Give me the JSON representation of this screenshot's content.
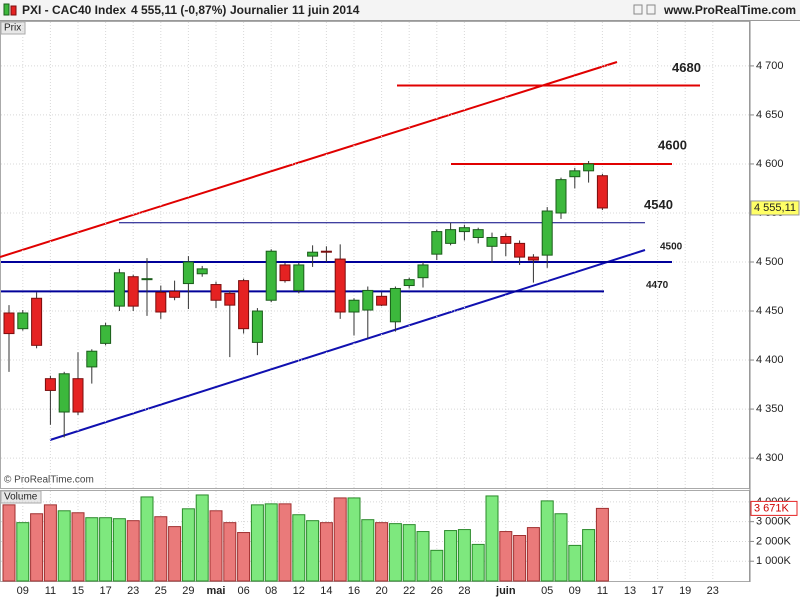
{
  "header": {
    "symbol": "PXI - CAC40 Index",
    "quote": "4 555,11 (-0,87%)",
    "period": "Journalier",
    "date": "11 juin 2014",
    "site": "www.ProRealTime.com"
  },
  "copyright": "© ProRealTime.com",
  "chart_data": [
    {
      "type": "candlestick",
      "axis_label": "Prix",
      "categories": [
        null,
        "09",
        null,
        "11",
        null,
        "15",
        null,
        "17",
        null,
        "23",
        null,
        "25",
        null,
        "29",
        null,
        "mai",
        null,
        "06",
        null,
        "08",
        null,
        "12",
        null,
        "14",
        null,
        "16",
        null,
        "20",
        null,
        "22",
        null,
        "26",
        null,
        "28",
        null,
        null,
        "juin",
        null,
        null,
        "05",
        null,
        "09",
        null,
        "11",
        null,
        "13",
        null,
        "17",
        null,
        "19",
        null,
        "23",
        null
      ],
      "open": [
        4448,
        4432,
        4463,
        4381,
        4347,
        4381,
        4393,
        4417,
        4455,
        4485,
        4482,
        4469,
        4470,
        4478,
        4488,
        4477,
        4468,
        4481,
        4418,
        4461,
        4497,
        4471,
        4506,
        4511,
        4503,
        4449,
        4451,
        4465,
        4439,
        4476,
        4484,
        4508,
        4519,
        4531,
        4525,
        4516,
        4526,
        4519,
        4505,
        4507,
        4550,
        4587,
        4593,
        4588,
        null,
        null,
        null,
        null,
        null,
        null,
        null,
        null,
        null
      ],
      "high": [
        4456,
        4451,
        4469,
        4384,
        4388,
        4408,
        4411,
        4438,
        4493,
        4487,
        4504,
        4476,
        4481,
        4506,
        4496,
        4480,
        4471,
        4483,
        4453,
        4513,
        4499,
        4499,
        4517,
        4516,
        4518,
        4463,
        4475,
        4469,
        4475,
        4484,
        4500,
        4533,
        4540,
        4538,
        4535,
        4530,
        4529,
        4522,
        4508,
        4556,
        4586,
        4596,
        4603,
        4590,
        null,
        null,
        null,
        null,
        null,
        null,
        null,
        null,
        null
      ],
      "low": [
        4388,
        4430,
        4412,
        4334,
        4321,
        4344,
        4376,
        4415,
        4450,
        4450,
        4445,
        4442,
        4461,
        4452,
        4485,
        4453,
        4403,
        4427,
        4405,
        4459,
        4479,
        4468,
        4495,
        4500,
        4442,
        4425,
        4422,
        4455,
        4429,
        4473,
        4474,
        4502,
        4517,
        4522,
        4519,
        4499,
        4506,
        4497,
        4479,
        4494,
        4544,
        4575,
        4581,
        4553,
        null,
        null,
        null,
        null,
        null,
        null,
        null,
        null,
        null
      ],
      "close": [
        4427,
        4448,
        4415,
        4369,
        4386,
        4347,
        4409,
        4435,
        4489,
        4455,
        4483,
        4449,
        4464,
        4500,
        4493,
        4461,
        4456,
        4432,
        4450,
        4511,
        4481,
        4497,
        4510,
        4510,
        4449,
        4461,
        4471,
        4456,
        4473,
        4482,
        4497,
        4531,
        4533,
        4535,
        4533,
        4525,
        4519,
        4505,
        4502,
        4552,
        4584,
        4593,
        4600,
        4555.11,
        null,
        null,
        null,
        null,
        null,
        null,
        null,
        null,
        null
      ],
      "up_color": "#3cb83c",
      "down_color": "#e52222",
      "ylim": [
        4269.5,
        4745.8
      ],
      "yticks": [
        {
          "value": 4300,
          "label": "4 300"
        },
        {
          "value": 4350,
          "label": "4 350"
        },
        {
          "value": 4400,
          "label": "4 400"
        },
        {
          "value": 4450,
          "label": "4 450"
        },
        {
          "value": 4500,
          "label": "4 500"
        },
        {
          "value": 4550,
          "label": "4 550"
        },
        {
          "value": 4600,
          "label": "4 600"
        },
        {
          "value": 4650,
          "label": "4 650"
        },
        {
          "value": 4700,
          "label": "4 700"
        }
      ],
      "grid": true,
      "levels": [
        {
          "value": 4680,
          "color": "#e00000"
        },
        {
          "value": 4600,
          "color": "#e00000"
        },
        {
          "value": 4540,
          "color": "#000080"
        },
        {
          "value": 4500,
          "color": "#000099"
        },
        {
          "value": 4470,
          "color": "#000099"
        }
      ],
      "last": {
        "value": 4555.11,
        "label": "4 555,11"
      }
    },
    {
      "type": "bar",
      "axis_label": "Volume",
      "values": [
        3850,
        2950,
        3400,
        3850,
        3550,
        3450,
        3200,
        3200,
        3150,
        3050,
        4250,
        3250,
        2750,
        3650,
        4350,
        3550,
        2950,
        2450,
        3850,
        3900,
        3900,
        3350,
        3050,
        2950,
        4200,
        4200,
        3100,
        2950,
        2900,
        2850,
        2500,
        1550,
        2550,
        2600,
        1850,
        4300,
        2500,
        2300,
        2700,
        4050,
        3400,
        1800,
        2600,
        3671,
        null,
        null,
        null,
        null,
        null,
        null,
        null,
        null,
        null
      ],
      "up_color": "#7ee87e",
      "down_color": "#ea7a7a",
      "ylim": [
        0,
        4550
      ],
      "yticks": [
        {
          "value": 1000,
          "label": "1 000K"
        },
        {
          "value": 2000,
          "label": "2 000K"
        },
        {
          "value": 3000,
          "label": "3 000K"
        },
        {
          "value": 4000,
          "label": "4 000K"
        }
      ],
      "last": {
        "value": 3671,
        "label": "3 671K"
      }
    }
  ]
}
